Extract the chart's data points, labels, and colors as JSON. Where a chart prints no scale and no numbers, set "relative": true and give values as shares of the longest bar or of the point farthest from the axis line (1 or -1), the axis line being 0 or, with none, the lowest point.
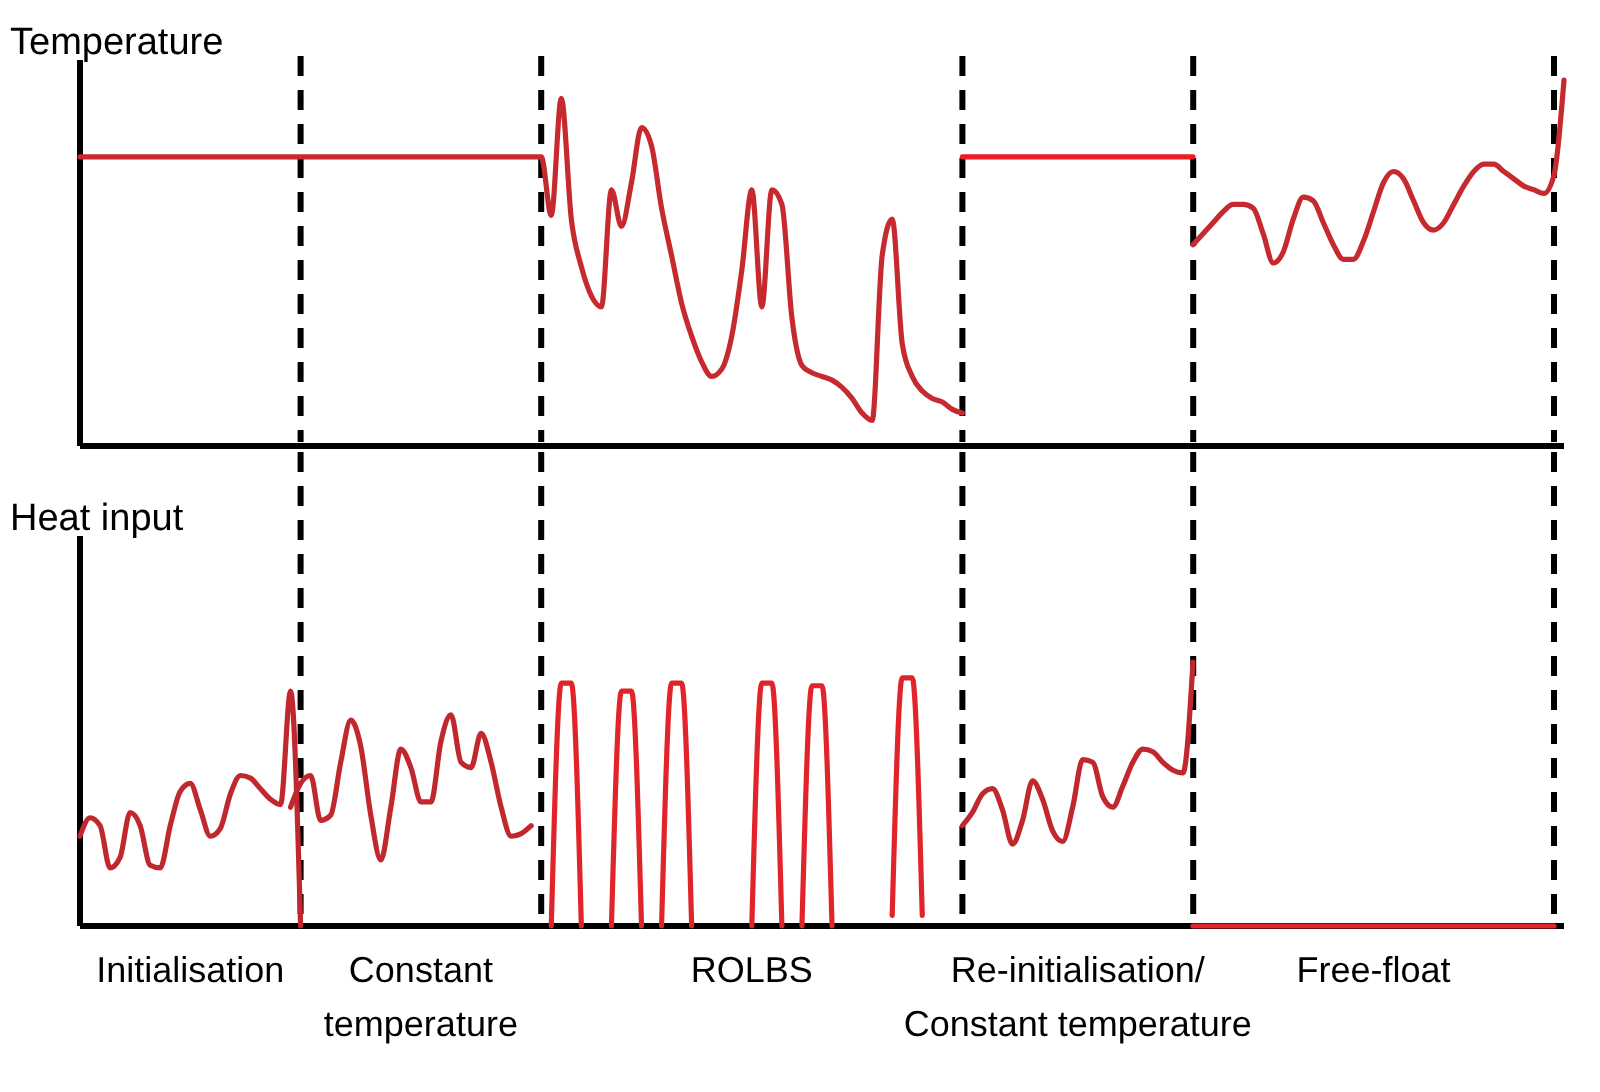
{
  "chart_data": [
    {
      "type": "line",
      "ylabel": "Temperature",
      "relative": true,
      "categories": [
        null,
        null,
        null,
        null,
        null,
        null,
        null,
        null,
        null,
        null,
        null,
        null,
        null,
        null,
        null,
        null,
        null,
        null,
        null,
        null,
        null,
        null,
        null,
        null,
        null,
        null,
        null,
        null,
        null,
        null,
        null,
        null,
        null,
        null,
        null,
        null,
        null,
        null,
        null,
        null,
        null,
        null,
        null,
        null,
        null,
        null,
        null,
        null,
        null,
        null,
        null,
        null,
        null,
        null,
        null,
        null,
        null,
        null,
        null,
        null,
        null,
        null,
        null,
        null,
        null,
        null,
        null,
        null,
        null,
        null,
        null,
        null,
        null,
        null,
        null,
        null,
        null,
        null,
        null,
        null,
        null,
        null,
        null,
        null,
        null,
        null,
        null,
        null,
        null,
        null,
        null,
        null,
        null,
        null,
        null,
        null,
        null,
        null,
        null,
        null,
        null,
        null,
        null,
        null,
        null,
        null,
        null,
        null,
        null,
        null,
        null,
        null,
        null,
        null,
        null,
        null,
        null,
        null,
        null,
        null,
        null,
        null,
        null,
        null,
        null,
        null,
        null,
        null,
        null,
        null,
        null,
        null,
        null,
        null,
        null,
        null,
        null,
        null,
        null,
        null,
        null,
        null,
        null,
        null,
        null,
        null,
        null,
        null,
        null
      ],
      "series": [
        {
          "color": "#c62a2e",
          "values": [
            0.79,
            0.79,
            0.79,
            0.79,
            0.79,
            0.79,
            0.79,
            0.79,
            0.79,
            0.79,
            0.79,
            0.79,
            0.79,
            0.79,
            0.79,
            0.79,
            0.79,
            0.79,
            0.79,
            0.79,
            0.79,
            0.79,
            0.79,
            0.79,
            0.79,
            0.79,
            0.79,
            0.79,
            0.79,
            0.79,
            0.79,
            0.79,
            0.79,
            0.79,
            0.79,
            0.79,
            0.79,
            0.79,
            0.79,
            0.79,
            0.79,
            0.79,
            0.79,
            0.79,
            0.79,
            0.79,
            0.79,
            0.63,
            0.95,
            0.62,
            0.49,
            0.41,
            0.38,
            0.7,
            0.6,
            0.72,
            0.87,
            0.82,
            0.65,
            0.52,
            0.39,
            0.3,
            0.23,
            0.19,
            0.21,
            0.3,
            0.48,
            0.7,
            0.38,
            0.7,
            0.66,
            0.35,
            0.22,
            0.2,
            0.19,
            0.18,
            0.16,
            0.13,
            0.09,
            0.07,
            0.52,
            0.62,
            0.28,
            0.19,
            0.15,
            0.13,
            0.12,
            0.1,
            0.09,
            null,
            null,
            null,
            null,
            null,
            null,
            null,
            null,
            null,
            null,
            null,
            null,
            null,
            null,
            null,
            null,
            null,
            null,
            null,
            null,
            null,
            null,
            0.55,
            0.58,
            0.61,
            0.64,
            0.66,
            0.66,
            0.65,
            0.58,
            0.5,
            0.53,
            0.62,
            0.68,
            0.67,
            0.61,
            0.55,
            0.51,
            0.51,
            0.56,
            0.64,
            0.72,
            0.75,
            0.73,
            0.67,
            0.61,
            0.59,
            0.61,
            0.66,
            0.71,
            0.75,
            0.77,
            0.77,
            0.75,
            0.73,
            0.71,
            0.7,
            0.69,
            0.74,
            1
          ]
        },
        {
          "color": "#ee1c24",
          "values": [
            null,
            null,
            null,
            null,
            null,
            null,
            null,
            null,
            null,
            null,
            null,
            null,
            null,
            null,
            null,
            null,
            null,
            null,
            null,
            null,
            null,
            null,
            null,
            null,
            null,
            null,
            null,
            null,
            null,
            null,
            null,
            null,
            null,
            null,
            null,
            null,
            null,
            null,
            null,
            null,
            null,
            null,
            null,
            null,
            null,
            null,
            null,
            null,
            null,
            null,
            null,
            null,
            null,
            null,
            null,
            null,
            null,
            null,
            null,
            null,
            null,
            null,
            null,
            null,
            null,
            null,
            null,
            null,
            null,
            null,
            null,
            null,
            null,
            null,
            null,
            null,
            null,
            null,
            null,
            null,
            null,
            null,
            null,
            null,
            null,
            null,
            null,
            null,
            0.79,
            0.79,
            0.79,
            0.79,
            0.79,
            0.79,
            0.79,
            0.79,
            0.79,
            0.79,
            0.79,
            0.79,
            0.79,
            0.79,
            0.79,
            0.79,
            0.79,
            0.79,
            0.79,
            0.79,
            0.79,
            0.79,
            0.79,
            0.79,
            null,
            null,
            null,
            null,
            null,
            null,
            null,
            null,
            null,
            null,
            null,
            null,
            null,
            null,
            null,
            null,
            null,
            null,
            null,
            null,
            null,
            null,
            null,
            null,
            null,
            null,
            null,
            null,
            null,
            null,
            null,
            null,
            null,
            null,
            null,
            null,
            null
          ]
        }
      ]
    },
    {
      "type": "line",
      "ylabel": "Heat input",
      "relative": true,
      "categories": [
        null,
        null,
        null,
        null,
        null,
        null,
        null,
        null,
        null,
        null,
        null,
        null,
        null,
        null,
        null,
        null,
        null,
        null,
        null,
        null,
        null,
        null,
        null,
        null,
        null,
        null,
        null,
        null,
        null,
        null,
        null,
        null,
        null,
        null,
        null,
        null,
        null,
        null,
        null,
        null,
        null,
        null,
        null,
        null,
        null,
        null,
        null,
        null,
        null,
        null,
        null,
        null,
        null,
        null,
        null,
        null,
        null,
        null,
        null,
        null,
        null,
        null,
        null,
        null,
        null,
        null,
        null,
        null,
        null,
        null,
        null,
        null,
        null,
        null,
        null,
        null,
        null,
        null,
        null,
        null,
        null,
        null,
        null,
        null,
        null,
        null,
        null,
        null,
        null,
        null,
        null,
        null,
        null,
        null,
        null,
        null,
        null,
        null,
        null,
        null,
        null,
        null,
        null,
        null,
        null,
        null,
        null,
        null,
        null,
        null,
        null,
        null,
        null,
        null,
        null,
        null,
        null,
        null,
        null,
        null,
        null,
        null,
        null,
        null,
        null,
        null,
        null,
        null,
        null,
        null,
        null,
        null,
        null,
        null,
        null,
        null,
        null,
        null,
        null,
        null,
        null,
        null,
        null,
        null,
        null,
        null,
        null,
        null,
        null
      ],
      "series": [
        {
          "color": "#c0282d",
          "values": [
            0.34,
            0.41,
            0.38,
            0.22,
            0.26,
            0.43,
            0.38,
            0.23,
            0.22,
            0.38,
            0.51,
            0.54,
            0.44,
            0.34,
            0.37,
            0.5,
            0.57,
            0.56,
            0.52,
            0.48,
            0.46,
            0.89,
            0,
            null,
            null,
            null,
            null,
            null,
            null,
            null,
            null,
            null,
            null,
            null,
            null,
            null,
            null,
            null,
            null,
            null,
            null,
            null,
            null,
            null,
            null,
            null,
            null,
            null,
            null,
            null,
            null,
            null,
            null,
            null,
            null,
            null,
            null,
            null,
            null,
            null,
            null,
            null,
            null,
            null,
            null,
            null,
            null,
            null,
            null,
            null,
            null,
            null,
            null,
            null,
            null,
            null,
            null,
            null,
            null,
            null,
            null,
            null,
            null,
            null,
            null,
            null,
            null,
            null,
            0.38,
            0.43,
            0.5,
            0.52,
            0.44,
            0.31,
            0.4,
            0.55,
            0.48,
            0.36,
            0.32,
            0.45,
            0.63,
            0.62,
            0.49,
            0.45,
            0.53,
            0.62,
            0.67,
            0.66,
            0.62,
            0.59,
            0.58,
            1,
            null,
            null,
            null,
            null,
            null,
            null,
            null,
            null,
            null,
            null,
            null,
            null,
            null,
            null,
            null,
            null,
            null,
            null,
            null,
            null,
            null,
            null,
            null,
            null,
            null,
            null,
            null,
            null,
            null,
            null,
            null,
            null,
            null,
            null,
            null,
            null,
            null
          ]
        },
        {
          "color": "#c0282d",
          "values": [
            null,
            null,
            null,
            null,
            null,
            null,
            null,
            null,
            null,
            null,
            null,
            null,
            null,
            null,
            null,
            null,
            null,
            null,
            null,
            null,
            null,
            0.45,
            0.54,
            0.57,
            0.4,
            0.42,
            0.62,
            0.78,
            0.68,
            0.42,
            0.25,
            0.45,
            0.67,
            0.6,
            0.47,
            0.47,
            0.7,
            0.8,
            0.62,
            0.6,
            0.73,
            0.62,
            0.45,
            0.34,
            0.35,
            0.38,
            null,
            null,
            null,
            null,
            null,
            null,
            null,
            null,
            null,
            null,
            null,
            null,
            null,
            null,
            null,
            null,
            null,
            null,
            null,
            null,
            null,
            null,
            null,
            null,
            null,
            null,
            null,
            null,
            null,
            null,
            null,
            null,
            null,
            null,
            null,
            null,
            null,
            null,
            null,
            null,
            null,
            null,
            null,
            null,
            null,
            null,
            null,
            null,
            null,
            null,
            null,
            null,
            null,
            null,
            null,
            null,
            null,
            null,
            null,
            null,
            null,
            null,
            null,
            null,
            null,
            null,
            null,
            null,
            null,
            null,
            null,
            null,
            null,
            null,
            null,
            null,
            null,
            null,
            null,
            null,
            null,
            null,
            null,
            null,
            null,
            null,
            null,
            null,
            null,
            null,
            null,
            null,
            null,
            null,
            null,
            null,
            null,
            null,
            null,
            null,
            null,
            null,
            null
          ]
        },
        {
          "color": "#e0242a",
          "values": [
            null,
            null,
            null,
            null,
            null,
            null,
            null,
            null,
            null,
            null,
            null,
            null,
            null,
            null,
            null,
            null,
            null,
            null,
            null,
            null,
            null,
            null,
            null,
            null,
            null,
            null,
            null,
            null,
            null,
            null,
            null,
            null,
            null,
            null,
            null,
            null,
            null,
            null,
            null,
            null,
            null,
            null,
            null,
            null,
            null,
            null,
            null,
            0,
            0.92,
            0.92,
            0,
            null,
            null,
            0,
            0.89,
            0.89,
            0,
            null,
            0,
            0.92,
            0.92,
            0,
            null,
            null,
            null,
            null,
            null,
            0,
            0.92,
            0.92,
            0,
            null,
            0,
            0.91,
            0.91,
            0,
            null,
            null,
            null,
            null,
            null,
            0.04,
            0.94,
            0.94,
            0.04,
            null,
            null,
            null,
            null,
            null,
            null,
            null,
            null,
            null,
            null,
            null,
            null,
            null,
            null,
            null,
            null,
            null,
            null,
            null,
            null,
            null,
            null,
            null,
            null,
            null,
            null,
            0,
            0,
            0,
            0,
            0,
            0,
            0,
            0,
            0,
            0,
            0,
            0,
            0,
            0,
            0,
            0,
            0,
            0,
            0,
            0,
            0,
            0,
            0,
            0,
            0,
            0,
            0,
            0,
            0,
            0,
            0,
            0,
            0,
            0,
            0,
            0,
            0,
            null
          ]
        }
      ],
      "annotations": [
        "Initialisation",
        "Constant\ntemperature",
        "ROLBS",
        "Re-initialisation/\nConstant temperature",
        "Free-float"
      ]
    }
  ]
}
